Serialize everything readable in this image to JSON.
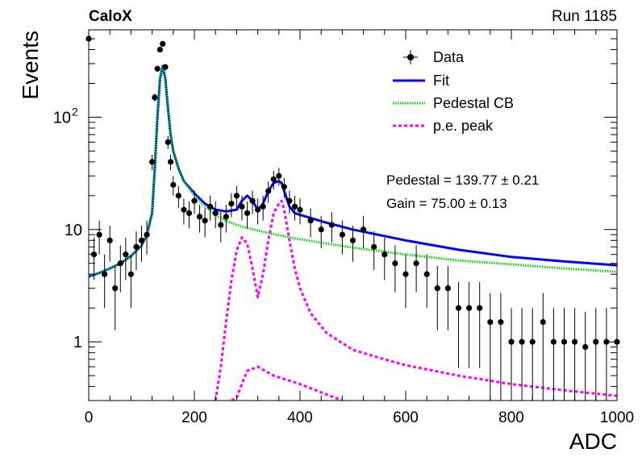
{
  "header": {
    "experiment": "CaloX",
    "run": "Run 1185"
  },
  "chart_data": {
    "type": "scatter",
    "xlabel": "ADC",
    "ylabel": "Events",
    "xlim": [
      0,
      1000
    ],
    "ylim": [
      0.3,
      600
    ],
    "yscale": "log",
    "x_ticks": [
      0,
      200,
      400,
      600,
      800,
      1000
    ],
    "y_ticks": [
      {
        "value": 1,
        "label": "1"
      },
      {
        "value": 10,
        "label": "10"
      },
      {
        "value": 100,
        "label": "10",
        "sup": "2"
      }
    ],
    "grid": false,
    "legend_position": "top-right",
    "legend": [
      {
        "label": "Data",
        "kind": "marker",
        "color": "#000000"
      },
      {
        "label": "Fit",
        "kind": "line",
        "color": "#0000ff"
      },
      {
        "label": "Pedestal CB",
        "kind": "dotted",
        "color": "#00dd00"
      },
      {
        "label": "p.e. peak",
        "kind": "dashed",
        "color": "#ff00ff"
      }
    ],
    "annotations": [
      {
        "text": "Pedestal = 139.77 ± 0.21"
      },
      {
        "text": "Gain = 75.00 ± 0.13"
      }
    ],
    "fit_params": {
      "pedestal": 139.77,
      "gain": 75.0
    },
    "data_points": {
      "x": [
        0,
        10,
        20,
        30,
        40,
        50,
        60,
        70,
        80,
        90,
        100,
        110,
        120,
        125,
        130,
        135,
        140,
        145,
        150,
        155,
        160,
        170,
        180,
        190,
        200,
        210,
        220,
        230,
        240,
        250,
        260,
        270,
        280,
        290,
        300,
        310,
        320,
        330,
        340,
        350,
        360,
        370,
        380,
        390,
        400,
        420,
        440,
        460,
        480,
        500,
        520,
        540,
        560,
        580,
        600,
        620,
        640,
        660,
        680,
        700,
        720,
        740,
        760,
        780,
        800,
        820,
        840,
        860,
        880,
        900,
        920,
        940,
        960,
        980,
        1000
      ],
      "y": [
        500,
        6,
        9,
        4,
        8,
        3,
        5,
        6,
        4,
        7,
        8,
        9,
        40,
        150,
        270,
        400,
        450,
        280,
        60,
        40,
        25,
        20,
        15,
        14,
        18,
        13,
        12,
        16,
        14,
        11,
        13,
        17,
        20,
        16,
        14,
        18,
        15,
        16,
        22,
        28,
        30,
        24,
        18,
        16,
        15,
        12,
        10,
        11,
        9,
        8,
        10,
        7,
        6,
        5,
        4,
        5,
        4,
        3,
        3,
        2,
        2,
        2,
        1.5,
        1.5,
        1,
        1,
        1,
        1.5,
        1,
        1,
        1,
        0.9,
        1,
        1,
        1
      ]
    },
    "series": [
      {
        "name": "Fit",
        "x": [
          0,
          20,
          40,
          60,
          80,
          100,
          110,
          120,
          125,
          130,
          135,
          140,
          145,
          150,
          155,
          160,
          170,
          180,
          200,
          220,
          240,
          260,
          280,
          290,
          300,
          310,
          320,
          330,
          340,
          350,
          360,
          365,
          370,
          380,
          390,
          400,
          450,
          500,
          600,
          700,
          800,
          900,
          1000
        ],
        "y": [
          3.8,
          4.1,
          4.5,
          5.0,
          5.8,
          7.2,
          9.0,
          14,
          35,
          100,
          220,
          285,
          220,
          120,
          70,
          50,
          35,
          27,
          21,
          17,
          15,
          14.5,
          15,
          18,
          20,
          18,
          15,
          17,
          22,
          26,
          27,
          26,
          22,
          16,
          14,
          13.5,
          11.5,
          10,
          8,
          6.6,
          5.7,
          5.2,
          4.8
        ]
      },
      {
        "name": "Pedestal CB",
        "x": [
          0,
          20,
          40,
          60,
          80,
          100,
          110,
          120,
          125,
          130,
          135,
          140,
          145,
          150,
          155,
          160,
          170,
          180,
          200,
          220,
          240,
          260,
          280,
          300,
          320,
          340,
          360,
          380,
          400,
          450,
          500,
          600,
          700,
          800,
          900,
          1000
        ],
        "y": [
          3.8,
          4.1,
          4.5,
          5.0,
          5.8,
          7.2,
          9.0,
          14,
          35,
          100,
          220,
          285,
          220,
          120,
          70,
          50,
          35,
          27,
          20,
          16,
          13.5,
          12,
          11,
          10.3,
          9.8,
          9.3,
          8.9,
          8.5,
          8.2,
          7.5,
          6.9,
          6.0,
          5.3,
          4.9,
          4.5,
          4.2
        ]
      },
      {
        "name": "p.e. peak",
        "x": [
          240,
          250,
          260,
          270,
          280,
          290,
          300,
          310,
          320,
          330,
          340,
          350,
          360,
          365,
          370,
          380,
          390,
          400,
          420,
          450,
          500,
          550,
          600,
          700,
          800,
          900,
          1000
        ],
        "y": [
          0.3,
          0.6,
          1.5,
          3.5,
          6.5,
          8.5,
          7.5,
          4.5,
          2.5,
          4,
          8,
          14,
          17,
          18,
          15,
          8,
          4.5,
          3,
          1.8,
          1.2,
          0.85,
          0.72,
          0.62,
          0.5,
          0.42,
          0.37,
          0.33
        ]
      },
      {
        "name": "p.e. peak (tail)",
        "x": [
          270,
          280,
          290,
          300,
          320,
          350,
          400,
          450,
          480
        ],
        "y": [
          0.3,
          0.32,
          0.42,
          0.55,
          0.6,
          0.5,
          0.42,
          0.34,
          0.3
        ]
      }
    ]
  }
}
